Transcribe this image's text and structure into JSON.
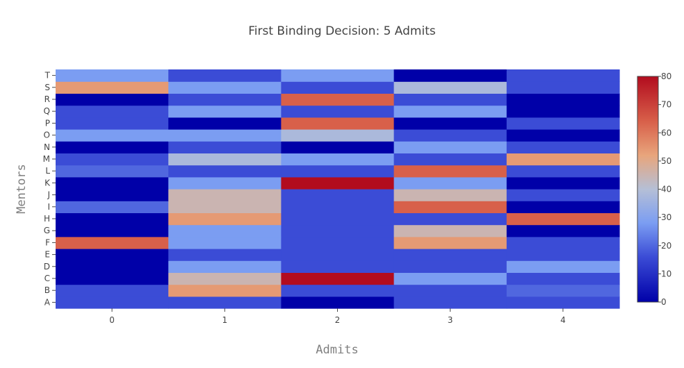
{
  "chart_data": {
    "type": "heatmap",
    "title": "First Binding Decision: 5 Admits",
    "xlabel": "Admits",
    "ylabel": "Mentors",
    "x": [
      "0",
      "1",
      "2",
      "3",
      "4"
    ],
    "y": [
      "A",
      "B",
      "C",
      "D",
      "E",
      "F",
      "G",
      "H",
      "I",
      "J",
      "K",
      "L",
      "M",
      "N",
      "O",
      "P",
      "Q",
      "R",
      "S",
      "T"
    ],
    "z": [
      [
        16,
        16,
        0,
        16,
        16
      ],
      [
        16,
        54,
        16,
        16,
        20
      ],
      [
        0,
        45,
        80,
        28,
        16
      ],
      [
        0,
        28,
        16,
        16,
        28
      ],
      [
        0,
        16,
        16,
        16,
        16
      ],
      [
        64,
        28,
        16,
        54,
        16
      ],
      [
        0,
        28,
        16,
        45,
        0
      ],
      [
        0,
        54,
        16,
        16,
        64
      ],
      [
        20,
        45,
        16,
        64,
        0
      ],
      [
        0,
        45,
        16,
        45,
        16
      ],
      [
        0,
        28,
        80,
        28,
        0
      ],
      [
        20,
        16,
        16,
        64,
        16
      ],
      [
        16,
        38,
        28,
        16,
        54
      ],
      [
        0,
        16,
        0,
        28,
        16
      ],
      [
        28,
        28,
        38,
        16,
        0
      ],
      [
        16,
        0,
        64,
        0,
        16
      ],
      [
        16,
        28,
        16,
        28,
        0
      ],
      [
        0,
        16,
        64,
        16,
        0
      ],
      [
        54,
        28,
        16,
        38,
        16
      ],
      [
        28,
        16,
        28,
        0,
        16
      ]
    ],
    "colorscale": "coolwarm",
    "zmin": 0,
    "zmax": 80,
    "colorbar_ticks": [
      "0",
      "10",
      "20",
      "30",
      "40",
      "50",
      "60",
      "70",
      "80"
    ]
  }
}
